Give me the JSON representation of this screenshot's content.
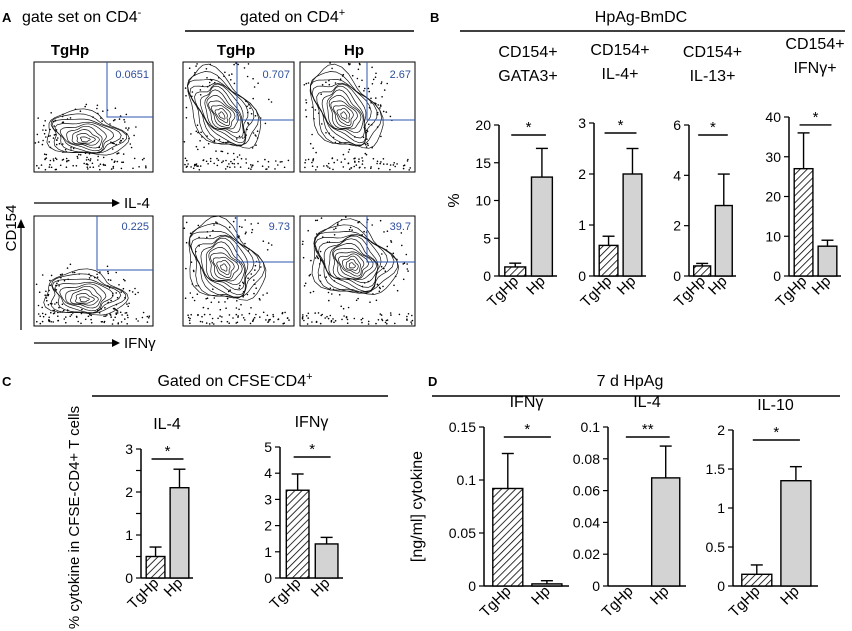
{
  "panel_a": {
    "letter": "A",
    "heading_left": "gate set on CD4",
    "heading_left_sup": "-",
    "heading_right": "gated on CD4",
    "heading_right_sup": "+",
    "col_labels": [
      "TgHp",
      "TgHp",
      "Hp"
    ],
    "row1_axis": "IL-4",
    "row2_axis": "IFNγ",
    "y_axis": "CD154",
    "quadrant_values": [
      [
        "0.0651",
        "0.707",
        "2.67"
      ],
      [
        "0.225",
        "9.73",
        "39.7"
      ]
    ]
  },
  "panel_b": {
    "letter": "B",
    "title": "HpAg-BmDC"
  },
  "panel_c": {
    "letter": "C",
    "title": "Gated on CFSE",
    "title_sup1": "-",
    "title_mid": "CD4",
    "title_sup2": "+"
  },
  "panel_d": {
    "letter": "D",
    "title": "7 d HpAg"
  },
  "chart_data": [
    {
      "id": "b1",
      "panel": "B",
      "type": "bar",
      "title_line1": "CD154+",
      "title_line2": "GATA3+",
      "categories": [
        "TgHp",
        "Hp"
      ],
      "values": [
        1.2,
        13.1
      ],
      "errors": [
        0.5,
        3.8
      ],
      "ylim": [
        0,
        20
      ],
      "ticks": [
        0,
        5,
        10,
        15,
        20
      ],
      "tick_labels": [
        "0",
        "5",
        "10",
        "15",
        "20"
      ],
      "ylabel": "%",
      "significance": "*"
    },
    {
      "id": "b2",
      "panel": "B",
      "type": "bar",
      "title_line1": "CD154+",
      "title_line2": "IL-4+",
      "categories": [
        "TgHp",
        "Hp"
      ],
      "values": [
        0.6,
        2.0
      ],
      "errors": [
        0.18,
        0.5
      ],
      "ylim": [
        0,
        3
      ],
      "ticks": [
        0,
        1,
        2,
        3
      ],
      "tick_labels": [
        "0",
        "1",
        "2",
        "3"
      ],
      "ylabel": "",
      "significance": "*"
    },
    {
      "id": "b3",
      "panel": "B",
      "type": "bar",
      "title_line1": "CD154+",
      "title_line2": "IL-13+",
      "categories": [
        "TgHp",
        "Hp"
      ],
      "values": [
        0.4,
        2.8
      ],
      "errors": [
        0.1,
        1.25
      ],
      "ylim": [
        0,
        6
      ],
      "ticks": [
        0,
        2,
        4,
        6
      ],
      "tick_labels": [
        "0",
        "2",
        "4",
        "6"
      ],
      "ylabel": "",
      "significance": "*"
    },
    {
      "id": "b4",
      "panel": "B",
      "type": "bar",
      "title_line1": "CD154+",
      "title_line2": "IFNγ+",
      "categories": [
        "TgHp",
        "Hp"
      ],
      "values": [
        27,
        7.5
      ],
      "errors": [
        9,
        1.5
      ],
      "ylim": [
        0,
        40
      ],
      "ticks": [
        0,
        10,
        20,
        30,
        40
      ],
      "tick_labels": [
        "0",
        "10",
        "20",
        "30",
        "40"
      ],
      "ylabel": "",
      "significance": "*"
    },
    {
      "id": "c1",
      "panel": "C",
      "type": "bar",
      "title_line1": "IL-4",
      "title_line2": "",
      "categories": [
        "TgHp",
        "Hp"
      ],
      "values": [
        0.5,
        2.1
      ],
      "errors": [
        0.22,
        0.43
      ],
      "ylim": [
        0,
        3
      ],
      "ticks": [
        0,
        0.5,
        1,
        1.5,
        2,
        2.5,
        3
      ],
      "tick_labels": [
        "0",
        "",
        "1",
        "",
        "2",
        "",
        "3"
      ],
      "ylabel": "% cytokine in CFSE-CD4+ T cells",
      "significance": "*"
    },
    {
      "id": "c2",
      "panel": "C",
      "type": "bar",
      "title_line1": "IFNγ",
      "title_line2": "",
      "categories": [
        "TgHp",
        "Hp"
      ],
      "values": [
        3.35,
        1.3
      ],
      "errors": [
        0.62,
        0.25
      ],
      "ylim": [
        0,
        5
      ],
      "ticks": [
        0,
        1,
        2,
        3,
        4,
        5
      ],
      "tick_labels": [
        "0",
        "1",
        "2",
        "3",
        "4",
        "5"
      ],
      "ylabel": "",
      "significance": "*"
    },
    {
      "id": "d1",
      "panel": "D",
      "type": "bar",
      "title_line1": "IFNγ",
      "title_line2": "",
      "categories": [
        "TgHp",
        "Hp"
      ],
      "values": [
        0.092,
        0.002
      ],
      "errors": [
        0.033,
        0.003
      ],
      "ylim": [
        0,
        0.15
      ],
      "ticks": [
        0,
        0.05,
        0.1,
        0.15
      ],
      "tick_labels": [
        "0",
        "0.05",
        "0.1",
        "0.15"
      ],
      "ylabel": "[ng/ml] cytokine",
      "significance": "*"
    },
    {
      "id": "d2",
      "panel": "D",
      "type": "bar",
      "title_line1": "IL-4",
      "title_line2": "",
      "categories": [
        "TgHp",
        "Hp"
      ],
      "values": [
        0,
        0.068
      ],
      "errors": [
        0,
        0.02
      ],
      "ylim": [
        0,
        0.1
      ],
      "ticks": [
        0,
        0.02,
        0.04,
        0.06,
        0.08,
        0.1
      ],
      "tick_labels": [
        "0",
        "0.02",
        "0.04",
        "0.06",
        "0.08",
        "0.1"
      ],
      "ylabel": "",
      "significance": "**"
    },
    {
      "id": "d3",
      "panel": "D",
      "type": "bar",
      "title_line1": "IL-10",
      "title_line2": "",
      "categories": [
        "TgHp",
        "Hp"
      ],
      "values": [
        0.15,
        1.35
      ],
      "errors": [
        0.12,
        0.18
      ],
      "ylim": [
        0,
        2
      ],
      "ticks": [
        0,
        0.5,
        1,
        1.5,
        2
      ],
      "tick_labels": [
        "0",
        "0.5",
        "1",
        "1.5",
        "2"
      ],
      "ylabel": "",
      "significance": "*"
    }
  ],
  "colors": {
    "bar_fill": "#d3d3d3",
    "axis": "#000000",
    "gate": "#2e55b0",
    "gate_text": "#2e4f9e"
  }
}
